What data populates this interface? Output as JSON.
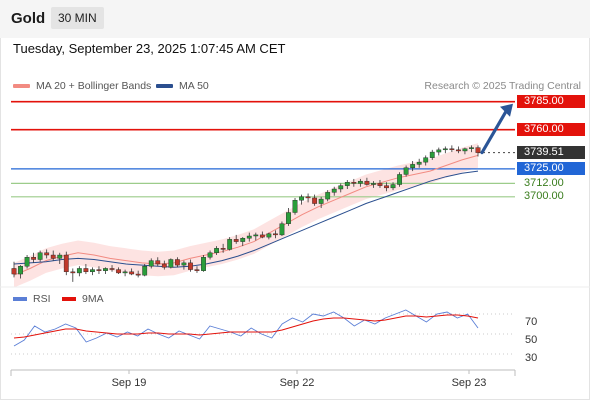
{
  "header": {
    "title": "Gold",
    "timeframe": "30 MIN"
  },
  "date_text": "Tuesday, September 23, 2025 1:07:45 AM CET",
  "legend": {
    "ma20": {
      "label": "MA 20 + Bollinger Bands",
      "color": "#f28b82"
    },
    "ma50": {
      "label": "MA 50",
      "color": "#2b4f8f"
    }
  },
  "credit": "Research © 2025 Trading Central",
  "rsi_legend": {
    "rsi": {
      "label": "RSI",
      "color": "#5b7fd6"
    },
    "ma9": {
      "label": "9MA",
      "color": "#e3120b"
    }
  },
  "levels": [
    {
      "value": 3785.0,
      "label": "3785.00",
      "kind": "resistance"
    },
    {
      "value": 3760.0,
      "label": "3760.00",
      "kind": "resistance"
    },
    {
      "value": 3739.51,
      "label": "3739.51",
      "kind": "last"
    },
    {
      "value": 3725.0,
      "label": "3725.00",
      "kind": "pivot"
    },
    {
      "value": 3712.0,
      "label": "3712.00",
      "kind": "support"
    },
    {
      "value": 3700.0,
      "label": "3700.00",
      "kind": "support"
    }
  ],
  "rsi_ticks": [
    "70",
    "50",
    "30"
  ],
  "x_ticks": [
    "Sep 19",
    "Sep 22",
    "Sep 23"
  ],
  "chart_data": [
    {
      "type": "candlestick",
      "title": "Gold 30 MIN",
      "y_unit": "USD",
      "last_price": 3739.51,
      "ylim": [
        3623,
        3791
      ],
      "series": [
        {
          "name": "MA 20 + Bollinger Bands",
          "values": [
            3630,
            3636,
            3643,
            3647,
            3650,
            3648,
            3645,
            3643,
            3641,
            3640,
            3641,
            3645,
            3648,
            3651,
            3655,
            3660,
            3668,
            3676,
            3684,
            3691,
            3697,
            3703,
            3709,
            3713,
            3717,
            3720,
            3723,
            3728,
            3733,
            3737
          ]
        },
        {
          "name": "MA 50",
          "values": [
            3640,
            3641,
            3642,
            3644,
            3645,
            3644,
            3642,
            3640,
            3639,
            3638,
            3637,
            3638,
            3640,
            3643,
            3647,
            3652,
            3658,
            3664,
            3670,
            3676,
            3682,
            3688,
            3694,
            3699,
            3704,
            3709,
            3714,
            3718,
            3721,
            3723
          ]
        }
      ],
      "candles": [
        {
          "o": 3636,
          "h": 3642,
          "l": 3628,
          "c": 3631
        },
        {
          "o": 3631,
          "h": 3639,
          "l": 3627,
          "c": 3638
        },
        {
          "o": 3638,
          "h": 3648,
          "l": 3636,
          "c": 3646
        },
        {
          "o": 3646,
          "h": 3650,
          "l": 3641,
          "c": 3644
        },
        {
          "o": 3644,
          "h": 3652,
          "l": 3642,
          "c": 3650
        },
        {
          "o": 3650,
          "h": 3653,
          "l": 3645,
          "c": 3648
        },
        {
          "o": 3648,
          "h": 3652,
          "l": 3643,
          "c": 3645
        },
        {
          "o": 3645,
          "h": 3650,
          "l": 3640,
          "c": 3648
        },
        {
          "o": 3648,
          "h": 3651,
          "l": 3630,
          "c": 3633
        },
        {
          "o": 3633,
          "h": 3636,
          "l": 3624,
          "c": 3632
        },
        {
          "o": 3632,
          "h": 3638,
          "l": 3629,
          "c": 3636
        },
        {
          "o": 3636,
          "h": 3640,
          "l": 3631,
          "c": 3633
        },
        {
          "o": 3633,
          "h": 3637,
          "l": 3630,
          "c": 3635
        },
        {
          "o": 3635,
          "h": 3638,
          "l": 3631,
          "c": 3634
        },
        {
          "o": 3634,
          "h": 3637,
          "l": 3631,
          "c": 3636
        },
        {
          "o": 3636,
          "h": 3639,
          "l": 3633,
          "c": 3635
        },
        {
          "o": 3635,
          "h": 3637,
          "l": 3631,
          "c": 3632
        },
        {
          "o": 3632,
          "h": 3635,
          "l": 3629,
          "c": 3633
        },
        {
          "o": 3633,
          "h": 3636,
          "l": 3630,
          "c": 3631
        },
        {
          "o": 3631,
          "h": 3634,
          "l": 3628,
          "c": 3630
        },
        {
          "o": 3630,
          "h": 3640,
          "l": 3629,
          "c": 3638
        },
        {
          "o": 3638,
          "h": 3645,
          "l": 3636,
          "c": 3643
        },
        {
          "o": 3643,
          "h": 3646,
          "l": 3638,
          "c": 3640
        },
        {
          "o": 3640,
          "h": 3643,
          "l": 3635,
          "c": 3637
        },
        {
          "o": 3637,
          "h": 3645,
          "l": 3636,
          "c": 3644
        },
        {
          "o": 3644,
          "h": 3646,
          "l": 3637,
          "c": 3639
        },
        {
          "o": 3639,
          "h": 3643,
          "l": 3635,
          "c": 3641
        },
        {
          "o": 3641,
          "h": 3644,
          "l": 3633,
          "c": 3635
        },
        {
          "o": 3635,
          "h": 3638,
          "l": 3632,
          "c": 3634
        },
        {
          "o": 3634,
          "h": 3648,
          "l": 3633,
          "c": 3646
        },
        {
          "o": 3646,
          "h": 3652,
          "l": 3644,
          "c": 3650
        },
        {
          "o": 3650,
          "h": 3656,
          "l": 3648,
          "c": 3654
        },
        {
          "o": 3654,
          "h": 3658,
          "l": 3650,
          "c": 3653
        },
        {
          "o": 3653,
          "h": 3664,
          "l": 3652,
          "c": 3662
        },
        {
          "o": 3662,
          "h": 3666,
          "l": 3658,
          "c": 3660
        },
        {
          "o": 3660,
          "h": 3664,
          "l": 3656,
          "c": 3663
        },
        {
          "o": 3663,
          "h": 3668,
          "l": 3660,
          "c": 3665
        },
        {
          "o": 3665,
          "h": 3668,
          "l": 3661,
          "c": 3666
        },
        {
          "o": 3666,
          "h": 3669,
          "l": 3663,
          "c": 3664
        },
        {
          "o": 3664,
          "h": 3668,
          "l": 3662,
          "c": 3667
        },
        {
          "o": 3667,
          "h": 3670,
          "l": 3663,
          "c": 3666
        },
        {
          "o": 3666,
          "h": 3678,
          "l": 3665,
          "c": 3676
        },
        {
          "o": 3676,
          "h": 3690,
          "l": 3674,
          "c": 3686
        },
        {
          "o": 3686,
          "h": 3699,
          "l": 3684,
          "c": 3697
        },
        {
          "o": 3697,
          "h": 3702,
          "l": 3693,
          "c": 3700
        },
        {
          "o": 3700,
          "h": 3703,
          "l": 3695,
          "c": 3699
        },
        {
          "o": 3699,
          "h": 3702,
          "l": 3692,
          "c": 3694
        },
        {
          "o": 3694,
          "h": 3700,
          "l": 3690,
          "c": 3698
        },
        {
          "o": 3698,
          "h": 3706,
          "l": 3696,
          "c": 3704
        },
        {
          "o": 3704,
          "h": 3709,
          "l": 3701,
          "c": 3707
        },
        {
          "o": 3707,
          "h": 3712,
          "l": 3704,
          "c": 3710
        },
        {
          "o": 3710,
          "h": 3715,
          "l": 3707,
          "c": 3713
        },
        {
          "o": 3713,
          "h": 3716,
          "l": 3709,
          "c": 3712
        },
        {
          "o": 3712,
          "h": 3716,
          "l": 3709,
          "c": 3714
        },
        {
          "o": 3714,
          "h": 3717,
          "l": 3710,
          "c": 3711
        },
        {
          "o": 3711,
          "h": 3714,
          "l": 3708,
          "c": 3712
        },
        {
          "o": 3712,
          "h": 3715,
          "l": 3708,
          "c": 3710
        },
        {
          "o": 3710,
          "h": 3713,
          "l": 3705,
          "c": 3708
        },
        {
          "o": 3708,
          "h": 3713,
          "l": 3706,
          "c": 3711
        },
        {
          "o": 3711,
          "h": 3722,
          "l": 3709,
          "c": 3720
        },
        {
          "o": 3720,
          "h": 3728,
          "l": 3718,
          "c": 3726
        },
        {
          "o": 3726,
          "h": 3732,
          "l": 3723,
          "c": 3729
        },
        {
          "o": 3729,
          "h": 3734,
          "l": 3726,
          "c": 3731
        },
        {
          "o": 3731,
          "h": 3737,
          "l": 3728,
          "c": 3735
        },
        {
          "o": 3735,
          "h": 3742,
          "l": 3733,
          "c": 3740
        },
        {
          "o": 3740,
          "h": 3744,
          "l": 3737,
          "c": 3742
        },
        {
          "o": 3742,
          "h": 3745,
          "l": 3739,
          "c": 3743
        },
        {
          "o": 3743,
          "h": 3746,
          "l": 3740,
          "c": 3742
        },
        {
          "o": 3742,
          "h": 3745,
          "l": 3739,
          "c": 3741
        },
        {
          "o": 3741,
          "h": 3744,
          "l": 3738,
          "c": 3743
        },
        {
          "o": 3743,
          "h": 3746,
          "l": 3740,
          "c": 3744
        },
        {
          "o": 3744,
          "h": 3746,
          "l": 3736,
          "c": 3739.51
        }
      ],
      "projection": {
        "from": 3739.51,
        "to": 3785.0
      }
    },
    {
      "type": "line",
      "title": "RSI",
      "ylim": [
        20,
        80
      ],
      "series": [
        {
          "name": "RSI",
          "values": [
            38,
            44,
            58,
            52,
            55,
            60,
            56,
            42,
            46,
            51,
            47,
            52,
            48,
            55,
            50,
            46,
            53,
            49,
            45,
            58,
            55,
            52,
            48,
            56,
            50,
            46,
            60,
            66,
            62,
            70,
            68,
            72,
            66,
            58,
            64,
            60,
            66,
            70,
            74,
            68,
            62,
            70,
            72,
            66,
            70,
            56
          ]
        },
        {
          "name": "9MA",
          "values": [
            46,
            47,
            49,
            51,
            53,
            55,
            55,
            53,
            52,
            51,
            50,
            50,
            50,
            51,
            51,
            50,
            50,
            50,
            49,
            50,
            51,
            52,
            52,
            52,
            52,
            52,
            54,
            57,
            60,
            63,
            65,
            66,
            66,
            65,
            64,
            63,
            64,
            66,
            68,
            68,
            67,
            68,
            69,
            69,
            68,
            66
          ]
        }
      ]
    }
  ]
}
